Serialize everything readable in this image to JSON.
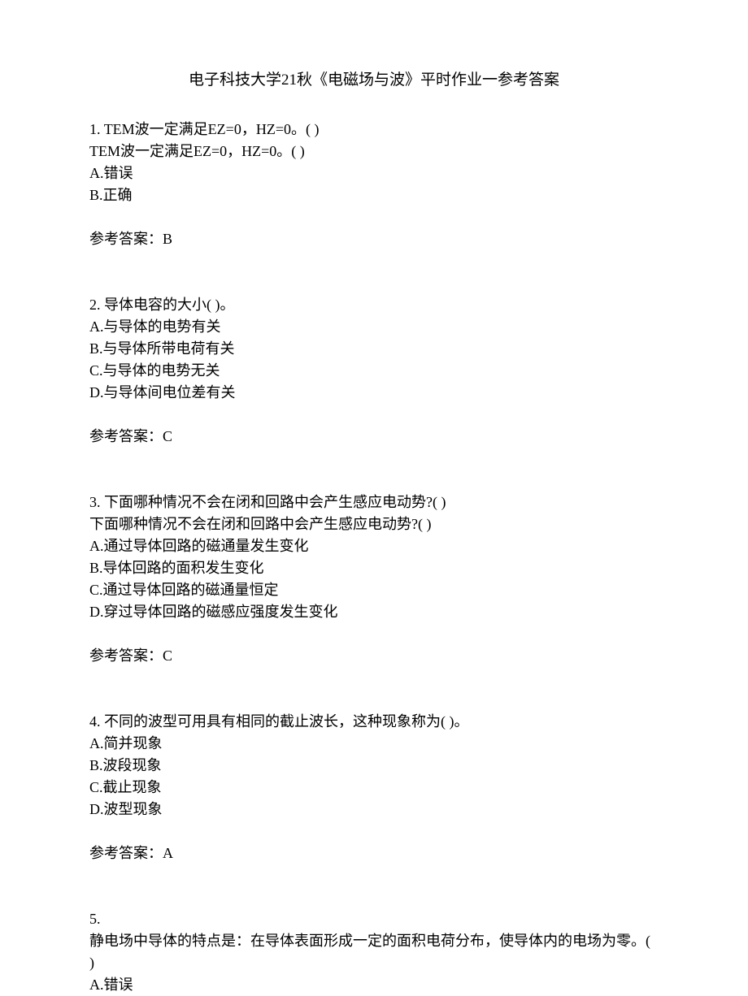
{
  "title": "电子科技大学21秋《电磁场与波》平时作业一参考答案",
  "questions": [
    {
      "number": "1.",
      "text_line1": "TEM波一定满足EZ=0，HZ=0。(   )",
      "text_line2": "TEM波一定满足EZ=0，HZ=0。(   )",
      "options": [
        "A.错误",
        "B.正确"
      ],
      "answer_label": "参考答案：B"
    },
    {
      "number": "2.",
      "text_line1": "导体电容的大小(   )。",
      "options": [
        "A.与导体的电势有关",
        "B.与导体所带电荷有关",
        "C.与导体的电势无关",
        "D.与导体间电位差有关"
      ],
      "answer_label": "参考答案：C"
    },
    {
      "number": "3.",
      "text_line1": "下面哪种情况不会在闭和回路中会产生感应电动势?(   )",
      "text_line2": "下面哪种情况不会在闭和回路中会产生感应电动势?(   )",
      "options": [
        "A.通过导体回路的磁通量发生变化",
        "B.导体回路的面积发生变化",
        "C.通过导体回路的磁通量恒定",
        "D.穿过导体回路的磁感应强度发生变化"
      ],
      "answer_label": "参考答案：C"
    },
    {
      "number": "4.",
      "text_line1": "不同的波型可用具有相同的截止波长，这种现象称为(   )。",
      "options": [
        "A.简并现象",
        "B.波段现象",
        "C.截止现象",
        "D.波型现象"
      ],
      "answer_label": "参考答案：A"
    },
    {
      "number": "5.",
      "text_line1": "",
      "text_line2": "静电场中导体的特点是：在导体表面形成一定的面积电荷分布，使导体内的电场为零。(   )",
      "options": [
        "A.错误"
      ]
    }
  ]
}
